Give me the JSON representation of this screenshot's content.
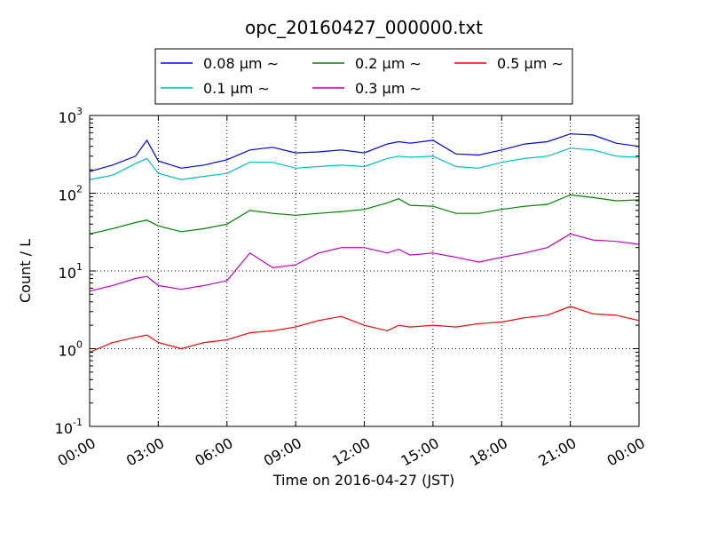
{
  "chart_data": {
    "type": "line",
    "title": "opc_20160427_000000.txt",
    "xlabel": "Time on 2016-04-27 (JST)",
    "ylabel": "Count / L",
    "y_scale": "log",
    "ylim": [
      0.1,
      1000
    ],
    "xlim": [
      "2016-04-27 00:00",
      "2016-04-28 00:00"
    ],
    "grid": true,
    "legend_position": "top (above plot)",
    "x_ticks": [
      "00:00",
      "03:00",
      "06:00",
      "09:00",
      "12:00",
      "15:00",
      "18:00",
      "21:00",
      "00:00"
    ],
    "y_ticks": [
      {
        "base": "10",
        "exp": "-1"
      },
      {
        "base": "10",
        "exp": "0"
      },
      {
        "base": "10",
        "exp": "1"
      },
      {
        "base": "10",
        "exp": "2"
      },
      {
        "base": "10",
        "exp": "3"
      }
    ],
    "x_hours": [
      0,
      1,
      2,
      2.5,
      3,
      4,
      5,
      6,
      7,
      8,
      9,
      10,
      11,
      12,
      13,
      13.5,
      14,
      15,
      16,
      17,
      18,
      19,
      20,
      21,
      22,
      23,
      24
    ],
    "series": [
      {
        "name": "0.08 μm ∼",
        "color": "#0000ff",
        "values": [
          190,
          230,
          300,
          480,
          260,
          210,
          230,
          270,
          360,
          390,
          330,
          340,
          360,
          330,
          430,
          460,
          440,
          480,
          320,
          310,
          360,
          430,
          460,
          580,
          560,
          440,
          400
        ]
      },
      {
        "name": "0.1 μm ∼",
        "color": "#00bfbf",
        "values": [
          150,
          170,
          240,
          280,
          180,
          150,
          165,
          180,
          250,
          250,
          210,
          220,
          230,
          220,
          280,
          300,
          290,
          300,
          220,
          210,
          250,
          280,
          300,
          380,
          360,
          300,
          290
        ]
      },
      {
        "name": "0.2 μm ∼",
        "color": "#008000",
        "values": [
          30,
          35,
          42,
          45,
          38,
          32,
          35,
          40,
          60,
          55,
          52,
          55,
          58,
          62,
          75,
          85,
          70,
          68,
          55,
          55,
          62,
          68,
          72,
          95,
          88,
          80,
          82
        ]
      },
      {
        "name": "0.3 μm ∼",
        "color": "#bf00bf",
        "values": [
          5.5,
          6.5,
          8,
          8.5,
          6.5,
          5.8,
          6.5,
          7.5,
          17,
          11,
          12,
          17,
          20,
          20,
          17,
          19,
          16,
          17,
          15,
          13,
          15,
          17,
          20,
          30,
          25,
          24,
          22
        ]
      },
      {
        "name": "0.5 μm ∼",
        "color": "#ff0000",
        "values": [
          0.9,
          1.2,
          1.4,
          1.5,
          1.2,
          1.0,
          1.2,
          1.3,
          1.6,
          1.7,
          1.9,
          2.3,
          2.6,
          2.0,
          1.7,
          2.0,
          1.9,
          2.0,
          1.9,
          2.1,
          2.2,
          2.5,
          2.7,
          3.5,
          2.8,
          2.7,
          2.3
        ]
      }
    ]
  }
}
